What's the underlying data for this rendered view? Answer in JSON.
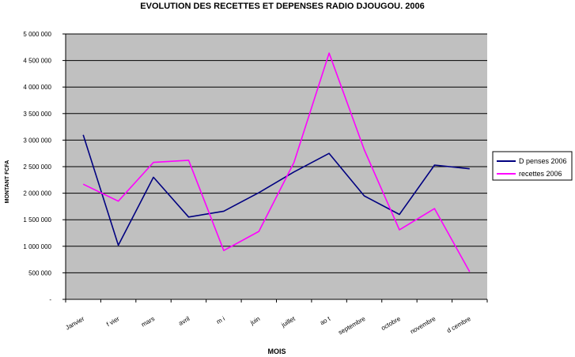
{
  "chart_data": {
    "type": "line",
    "title": "EVOLUTION DES RECETTES ET DEPENSES RADIO DJOUGOU. 2006",
    "xlabel": "MOIS",
    "ylabel": "MONTANT FCFA",
    "categories": [
      "Janvier",
      "f vier",
      "mars",
      "avril",
      "m i",
      "juin",
      "juillet",
      "ao t",
      "septembre",
      "octobre",
      "novembre",
      "d cembre"
    ],
    "y_tick_labels": [
      "-",
      "500 000",
      "1 000 000",
      "1 500 000",
      "2 000 000",
      "2 500 000",
      "3 000 000",
      "3 500 000",
      "4 000 000",
      "4 500 000",
      "5 000 000"
    ],
    "ylim": [
      0,
      5000000
    ],
    "grid": true,
    "legend_position": "right",
    "series": [
      {
        "name": "D penses 2006",
        "color": "#000080",
        "values": [
          3100000,
          1020000,
          2300000,
          1550000,
          1660000,
          2010000,
          2400000,
          2750000,
          1950000,
          1600000,
          2530000,
          2460000
        ]
      },
      {
        "name": "recettes 2006",
        "color": "#ff00ff",
        "values": [
          2170000,
          1850000,
          2580000,
          2620000,
          920000,
          1280000,
          2580000,
          4640000,
          2820000,
          1310000,
          1710000,
          520000
        ]
      }
    ],
    "plot_background": "#c0c0c0"
  }
}
